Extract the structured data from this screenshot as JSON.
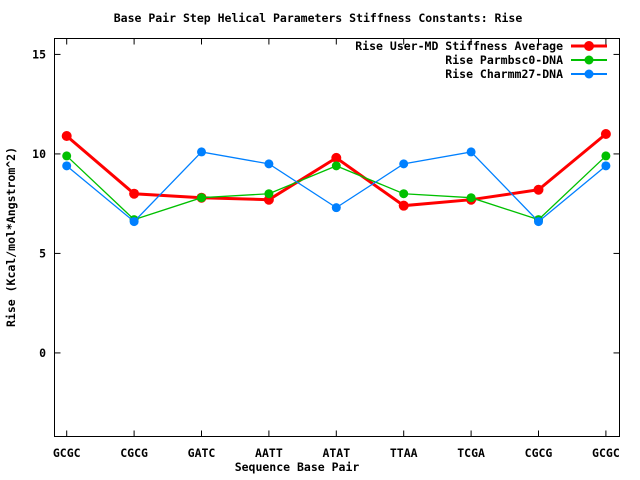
{
  "chart_data": {
    "type": "line",
    "title": "Base Pair Step Helical Parameters Stiffness Constants: Rise",
    "xlabel": "Sequence Base Pair",
    "ylabel": "Rise (Kcal/mol*Angstrom^2)",
    "categories": [
      "GCGC",
      "CGCG",
      "GATC",
      "AATT",
      "ATAT",
      "TTAA",
      "TCGA",
      "CGCG",
      "GCGC"
    ],
    "series": [
      {
        "name": "Rise User-MD Stiffness Average",
        "color": "#ff0000",
        "values": [
          10.9,
          8.0,
          7.8,
          7.7,
          9.8,
          7.4,
          7.7,
          8.2,
          11.0
        ]
      },
      {
        "name": "Rise Parmbsc0-DNA",
        "color": "#00c000",
        "values": [
          9.9,
          6.7,
          7.8,
          8.0,
          9.4,
          8.0,
          7.8,
          6.7,
          9.9
        ]
      },
      {
        "name": "Rise Charmm27-DNA",
        "color": "#0080ff",
        "values": [
          9.4,
          6.6,
          10.1,
          9.5,
          7.3,
          9.5,
          10.1,
          6.6,
          9.4
        ]
      }
    ],
    "yticks": [
      0,
      5,
      10,
      15
    ],
    "ylim": [
      -4.2,
      15.8
    ],
    "grid": false,
    "legend_position": "top-right-inside",
    "marker": "filled-circle",
    "background": "#ffffff",
    "text_color": "#000000",
    "border_color": "#000000"
  }
}
